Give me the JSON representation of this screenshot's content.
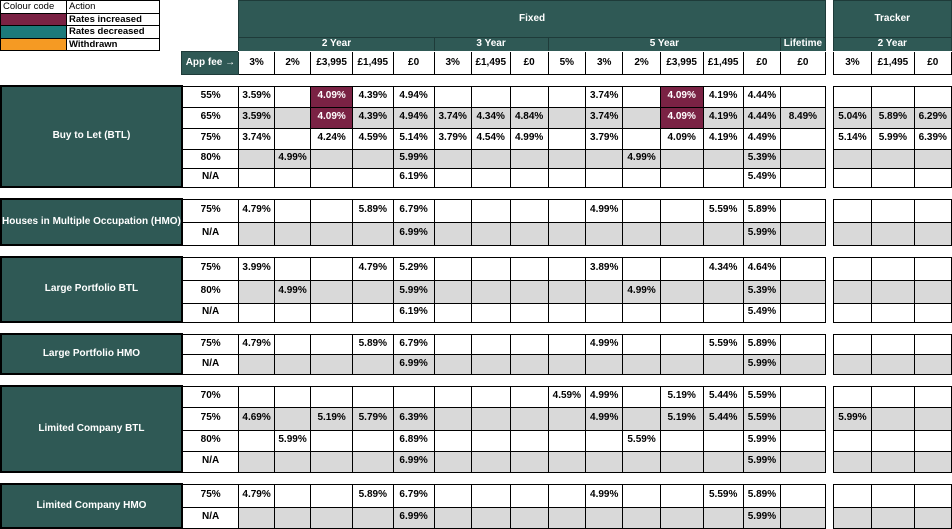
{
  "legend": {
    "header_code": "Colour code",
    "header_action": "Action",
    "items": [
      {
        "key": "inc",
        "label": "Rates increased",
        "color": "#7a2244"
      },
      {
        "key": "dec",
        "label": "Rates decreased",
        "color": "#1c7a7a"
      },
      {
        "key": "wd",
        "label": "Withdrawn",
        "color": "#f59a23"
      }
    ]
  },
  "headers": {
    "fixed": "Fixed",
    "tracker": "Tracker",
    "two_year": "2 Year",
    "three_year": "3 Year",
    "five_year": "5 Year",
    "lifetime": "Lifetime",
    "tracker_two_year": "2 Year",
    "app_fee": "App fee →"
  },
  "columns": [
    "3%",
    "2%",
    "£3,995",
    "£1,495",
    "£0",
    "3%",
    "£1,495",
    "£0",
    "5%",
    "3%",
    "2%",
    "£3,995",
    "£1,495",
    "£0",
    "£0",
    "3%",
    "£1,495",
    "£0"
  ],
  "sections": [
    {
      "name": "Buy to Let (BTL)",
      "rows": [
        {
          "ltv": "55%",
          "cells": [
            "3.59%",
            "",
            "4.09%",
            "4.39%",
            "4.94%",
            "",
            "",
            "",
            "",
            "3.74%",
            "",
            "4.09%",
            "4.19%",
            "4.44%",
            "",
            "",
            "",
            ""
          ],
          "marks": {
            "2": "inc",
            "11": "inc"
          }
        },
        {
          "ltv": "65%",
          "cells": [
            "3.59%",
            "",
            "4.09%",
            "4.39%",
            "4.94%",
            "3.74%",
            "4.34%",
            "4.84%",
            "",
            "3.74%",
            "",
            "4.09%",
            "4.19%",
            "4.44%",
            "8.49%",
            "5.04%",
            "5.89%",
            "6.29%"
          ],
          "marks": {
            "2": "inc",
            "11": "inc"
          }
        },
        {
          "ltv": "75%",
          "cells": [
            "3.74%",
            "",
            "4.24%",
            "4.59%",
            "5.14%",
            "3.79%",
            "4.54%",
            "4.99%",
            "",
            "3.79%",
            "",
            "4.09%",
            "4.19%",
            "4.49%",
            "",
            "5.14%",
            "5.99%",
            "6.39%"
          ],
          "marks": {}
        },
        {
          "ltv": "80%",
          "cells": [
            "",
            "4.99%",
            "",
            "",
            "5.99%",
            "",
            "",
            "",
            "",
            "",
            "4.99%",
            "",
            "",
            "5.39%",
            "",
            "",
            "",
            ""
          ],
          "marks": {}
        },
        {
          "ltv": "N/A",
          "cells": [
            "",
            "",
            "",
            "",
            "6.19%",
            "",
            "",
            "",
            "",
            "",
            "",
            "",
            "",
            "5.49%",
            "",
            "",
            "",
            ""
          ],
          "marks": {}
        }
      ]
    },
    {
      "name": "Houses in Multiple Occupation (HMO)",
      "rows": [
        {
          "ltv": "75%",
          "cells": [
            "4.79%",
            "",
            "",
            "5.89%",
            "6.79%",
            "",
            "",
            "",
            "",
            "4.99%",
            "",
            "",
            "5.59%",
            "5.89%",
            "",
            "",
            "",
            ""
          ],
          "marks": {}
        },
        {
          "ltv": "N/A",
          "cells": [
            "",
            "",
            "",
            "",
            "6.99%",
            "",
            "",
            "",
            "",
            "",
            "",
            "",
            "",
            "5.99%",
            "",
            "",
            "",
            ""
          ],
          "marks": {}
        }
      ]
    },
    {
      "name": "Large Portfolio BTL",
      "rows": [
        {
          "ltv": "75%",
          "cells": [
            "3.99%",
            "",
            "",
            "4.79%",
            "5.29%",
            "",
            "",
            "",
            "",
            "3.89%",
            "",
            "",
            "4.34%",
            "4.64%",
            "",
            "",
            "",
            ""
          ],
          "marks": {}
        },
        {
          "ltv": "80%",
          "cells": [
            "",
            "4.99%",
            "",
            "",
            "5.99%",
            "",
            "",
            "",
            "",
            "",
            "4.99%",
            "",
            "",
            "5.39%",
            "",
            "",
            "",
            ""
          ],
          "marks": {}
        },
        {
          "ltv": "N/A",
          "cells": [
            "",
            "",
            "",
            "",
            "6.19%",
            "",
            "",
            "",
            "",
            "",
            "",
            "",
            "",
            "5.49%",
            "",
            "",
            "",
            ""
          ],
          "marks": {}
        }
      ]
    },
    {
      "name": "Large Portfolio HMO",
      "rows": [
        {
          "ltv": "75%",
          "cells": [
            "4.79%",
            "",
            "",
            "5.89%",
            "6.79%",
            "",
            "",
            "",
            "",
            "4.99%",
            "",
            "",
            "5.59%",
            "5.89%",
            "",
            "",
            "",
            ""
          ],
          "marks": {}
        },
        {
          "ltv": "N/A",
          "cells": [
            "",
            "",
            "",
            "",
            "6.99%",
            "",
            "",
            "",
            "",
            "",
            "",
            "",
            "",
            "5.99%",
            "",
            "",
            "",
            ""
          ],
          "marks": {}
        }
      ]
    },
    {
      "name": "Limited Company BTL",
      "rows": [
        {
          "ltv": "70%",
          "cells": [
            "",
            "",
            "",
            "",
            "",
            "",
            "",
            "",
            "4.59%",
            "4.99%",
            "",
            "5.19%",
            "5.44%",
            "5.59%",
            "",
            "",
            "",
            ""
          ],
          "marks": {}
        },
        {
          "ltv": "75%",
          "cells": [
            "4.69%",
            "",
            "5.19%",
            "5.79%",
            "6.39%",
            "",
            "",
            "",
            "",
            "4.99%",
            "",
            "5.19%",
            "5.44%",
            "5.59%",
            "",
            "5.99%",
            "",
            ""
          ],
          "marks": {}
        },
        {
          "ltv": "80%",
          "cells": [
            "",
            "5.99%",
            "",
            "",
            "6.89%",
            "",
            "",
            "",
            "",
            "",
            "5.59%",
            "",
            "",
            "5.99%",
            "",
            "",
            "",
            ""
          ],
          "marks": {}
        },
        {
          "ltv": "N/A",
          "cells": [
            "",
            "",
            "",
            "",
            "6.99%",
            "",
            "",
            "",
            "",
            "",
            "",
            "",
            "",
            "5.99%",
            "",
            "",
            "",
            ""
          ],
          "marks": {}
        }
      ]
    },
    {
      "name": "Limited Company HMO",
      "rows": [
        {
          "ltv": "75%",
          "cells": [
            "4.79%",
            "",
            "",
            "5.89%",
            "6.79%",
            "",
            "",
            "",
            "",
            "4.99%",
            "",
            "",
            "5.59%",
            "5.89%",
            "",
            "",
            "",
            ""
          ],
          "marks": {}
        },
        {
          "ltv": "N/A",
          "cells": [
            "",
            "",
            "",
            "",
            "6.99%",
            "",
            "",
            "",
            "",
            "",
            "",
            "",
            "",
            "5.99%",
            "",
            "",
            "",
            ""
          ],
          "marks": {}
        }
      ]
    }
  ]
}
